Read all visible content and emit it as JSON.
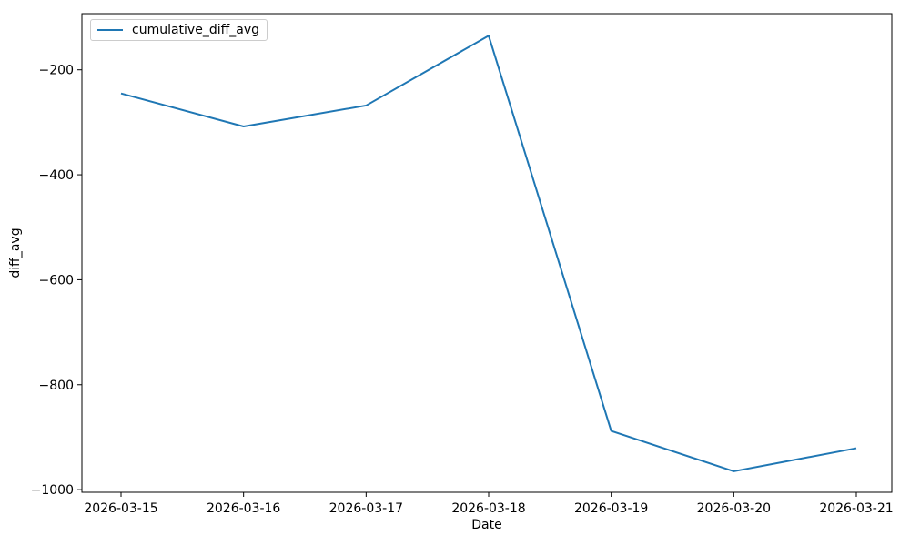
{
  "figure": {
    "background": "#ffffff",
    "axes_color": "#000000"
  },
  "chart_data": {
    "type": "line",
    "title": "",
    "xlabel": "Date",
    "ylabel": "diff_avg",
    "categories": [
      "2026-03-15",
      "2026-03-16",
      "2026-03-17",
      "2026-03-18",
      "2026-03-19",
      "2026-03-20",
      "2026-03-21"
    ],
    "series": [
      {
        "name": "cumulative_diff_avg",
        "color": "#1f77b4",
        "values": [
          -245,
          -308,
          -268,
          -135,
          -888,
          -965,
          -921
        ]
      }
    ],
    "ylim": [
      -1005,
      -93
    ],
    "yticks": [
      -200,
      -400,
      -600,
      -800,
      -1000
    ],
    "grid": false,
    "legend_position": "upper left"
  }
}
